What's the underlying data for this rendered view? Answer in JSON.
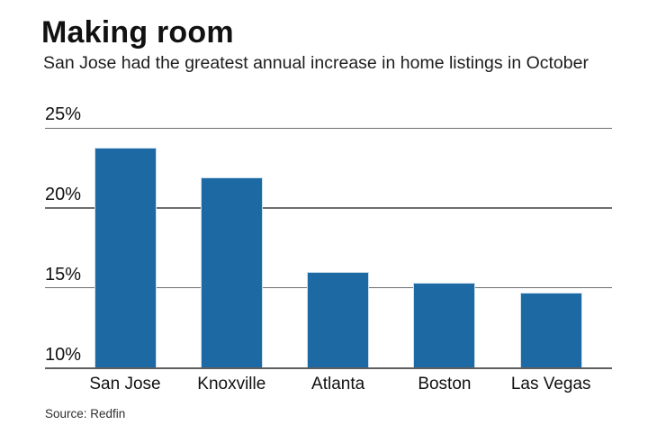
{
  "header": {
    "title": "Making room",
    "subtitle": "San Jose had the greatest annual increase in home listings in October"
  },
  "footer": {
    "source": "Source: Redfin"
  },
  "colors": {
    "bar_fill": "#1c69a4",
    "bar_edge": "#cfe0ee",
    "gridline": "#6e6e6e",
    "text": "#111111"
  },
  "chart_data": {
    "type": "bar",
    "title": "Making room",
    "subtitle": "San Jose had the greatest annual increase in home listings in October",
    "categories": [
      "San Jose",
      "Knoxville",
      "Atlanta",
      "Boston",
      "Las Vegas"
    ],
    "values": [
      23.8,
      21.9,
      16.0,
      15.3,
      14.7
    ],
    "unit": "%",
    "xlabel": "",
    "ylabel": "",
    "ylim": [
      10,
      25
    ],
    "yticks": [
      25,
      20,
      15,
      10
    ],
    "ytick_suffix": "%",
    "grid": "horizontal",
    "legend": "none",
    "source": "Source: Redfin"
  }
}
